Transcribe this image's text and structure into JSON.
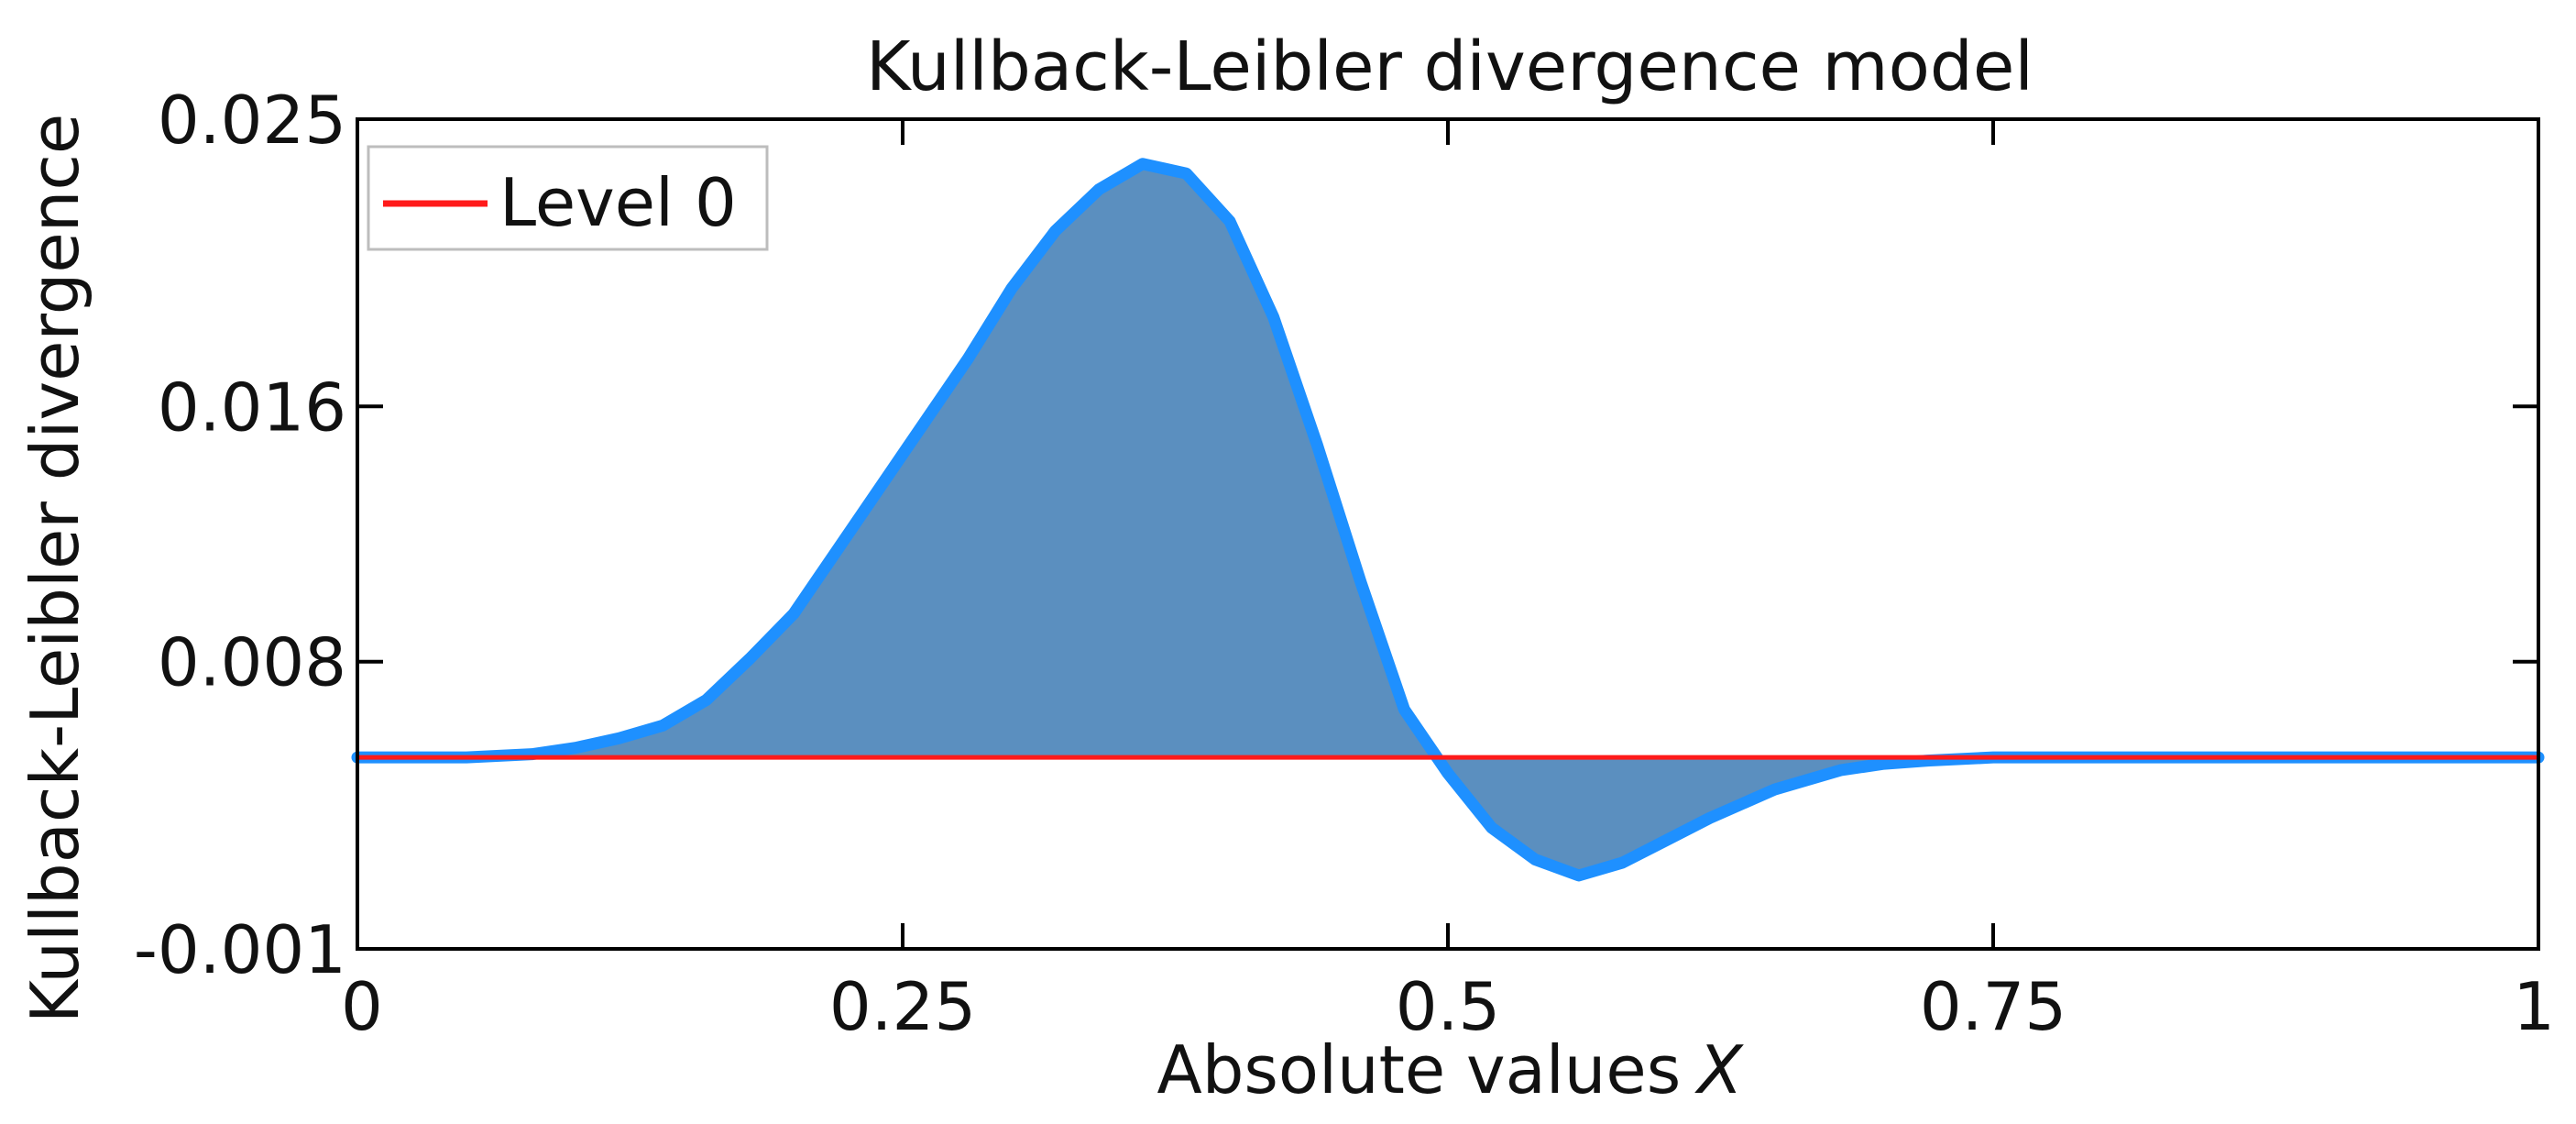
{
  "chart_data": {
    "type": "area",
    "title": "Kullback-Leibler divergence model",
    "xlabel": "Absolute values",
    "xlabel_var": "X",
    "ylabel": "Kullback-Leibler divergence",
    "xlim": [
      0,
      1
    ],
    "ylim": [
      -0.001,
      0.025
    ],
    "x_ticks": [
      0,
      0.25,
      0.5,
      0.75,
      1
    ],
    "x_tick_labels": [
      "0",
      "0.25",
      "0.5",
      "0.75",
      "1"
    ],
    "y_ticks": [
      -0.001,
      0.008,
      0.016,
      0.025
    ],
    "y_tick_labels": [
      "-0.001",
      "0.008",
      "0.016",
      "0.025"
    ],
    "grid": false,
    "legend_position": "top-left",
    "colors": {
      "curve": "#1e90ff",
      "fill": "#5b8fbf",
      "reference": "#ff1a1a",
      "axes": "#000000"
    },
    "reference_line": {
      "name": "Level 0",
      "y": 0.005
    },
    "series": [
      {
        "x": [
          0,
          0.05,
          0.08,
          0.1,
          0.12,
          0.14,
          0.16,
          0.18,
          0.2,
          0.22,
          0.25,
          0.28,
          0.3,
          0.32,
          0.34,
          0.36,
          0.38,
          0.4,
          0.42,
          0.44,
          0.46,
          0.48,
          0.5,
          0.52,
          0.54,
          0.56,
          0.58,
          0.6,
          0.62,
          0.65,
          0.68,
          0.7,
          0.72,
          0.75,
          0.8,
          0.9,
          1.0
        ],
        "y": [
          0.005,
          0.005,
          0.0051,
          0.0053,
          0.0056,
          0.006,
          0.0068,
          0.0081,
          0.0095,
          0.0115,
          0.0145,
          0.0175,
          0.0197,
          0.0215,
          0.0228,
          0.0236,
          0.0233,
          0.0218,
          0.0188,
          0.0148,
          0.0105,
          0.0065,
          0.0045,
          0.0028,
          0.0018,
          0.0013,
          0.0017,
          0.0024,
          0.0031,
          0.004,
          0.0046,
          0.0048,
          0.0049,
          0.005,
          0.005,
          0.005,
          0.005
        ]
      }
    ]
  }
}
